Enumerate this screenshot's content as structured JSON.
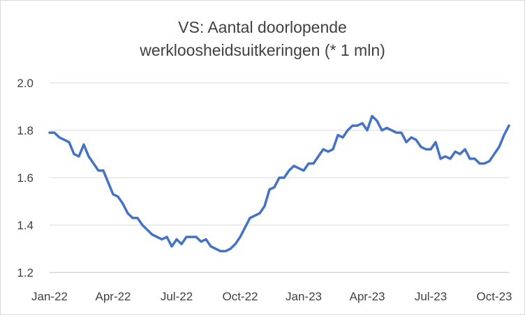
{
  "chart_data": {
    "type": "line",
    "title_lines": [
      "VS: Aantal doorlopende",
      "werkloosheidsuitkeringen (* 1 mln)"
    ],
    "xlabel": "",
    "ylabel": "",
    "ylim": [
      1.2,
      2.0
    ],
    "y_ticks": [
      "1.2",
      "1.4",
      "1.6",
      "1.8",
      "2.0"
    ],
    "x_ticks": [
      "Jan-22",
      "Apr-22",
      "Jul-22",
      "Oct-22",
      "Jan-23",
      "Apr-23",
      "Jul-23",
      "Oct-23"
    ],
    "grid": true,
    "legend": "none",
    "line_color": "#4472C4",
    "series": [
      {
        "values": [
          1.79,
          1.79,
          1.77,
          1.76,
          1.75,
          1.7,
          1.69,
          1.74,
          1.69,
          1.66,
          1.63,
          1.63,
          1.58,
          1.53,
          1.52,
          1.49,
          1.45,
          1.43,
          1.43,
          1.4,
          1.38,
          1.36,
          1.35,
          1.34,
          1.35,
          1.31,
          1.34,
          1.32,
          1.35,
          1.35,
          1.35,
          1.33,
          1.34,
          1.31,
          1.3,
          1.29,
          1.29,
          1.3,
          1.32,
          1.35,
          1.39,
          1.43,
          1.44,
          1.45,
          1.48,
          1.55,
          1.56,
          1.6,
          1.6,
          1.63,
          1.65,
          1.64,
          1.63,
          1.66,
          1.66,
          1.69,
          1.72,
          1.71,
          1.72,
          1.78,
          1.77,
          1.8,
          1.82,
          1.82,
          1.83,
          1.8,
          1.86,
          1.84,
          1.8,
          1.81,
          1.8,
          1.79,
          1.79,
          1.75,
          1.77,
          1.76,
          1.73,
          1.72,
          1.72,
          1.75,
          1.68,
          1.69,
          1.68,
          1.71,
          1.7,
          1.72,
          1.68,
          1.68,
          1.66,
          1.66,
          1.67,
          1.7,
          1.73,
          1.78,
          1.82
        ]
      }
    ]
  }
}
